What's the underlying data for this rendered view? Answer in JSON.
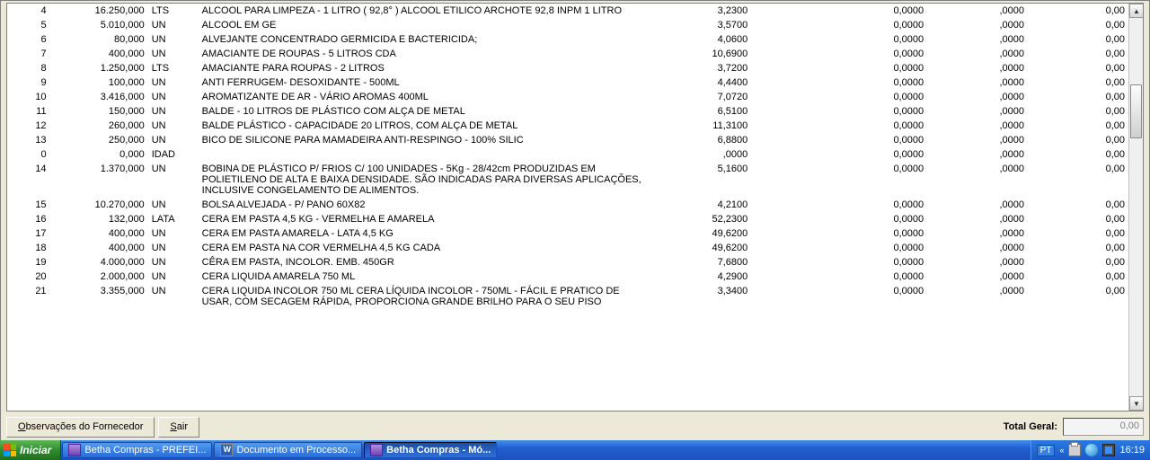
{
  "table": {
    "columns": {
      "num_width": 34,
      "qty_width": 78,
      "unit_width": 40,
      "desc_width": 360,
      "v1_width": 80,
      "v2_width": 140,
      "v3_width": 80,
      "v4_width": 80
    },
    "rows": [
      {
        "n": "4",
        "qty": "16.250,000",
        "unit": "LTS",
        "desc": "ALCOOL PARA LIMPEZA - 1 LITRO ( 92,8° )  ALCOOL ETILICO ARCHOTE 92,8 INPM 1 LITRO",
        "v1": "3,2300",
        "v2": "0,0000",
        "v3": ",0000",
        "v4": "0,00"
      },
      {
        "n": "5",
        "qty": "5.010,000",
        "unit": "UN",
        "desc": "ALCOOL EM GE",
        "v1": "3,5700",
        "v2": "0,0000",
        "v3": ",0000",
        "v4": "0,00"
      },
      {
        "n": "6",
        "qty": "80,000",
        "unit": "UN",
        "desc": "ALVEJANTE CONCENTRADO GERMICIDA E BACTERICIDA;",
        "v1": "4,0600",
        "v2": "0,0000",
        "v3": ",0000",
        "v4": "0,00"
      },
      {
        "n": "7",
        "qty": "400,000",
        "unit": "UN",
        "desc": "AMACIANTE DE ROUPAS - 5 LITROS CDA",
        "v1": "10,6900",
        "v2": "0,0000",
        "v3": ",0000",
        "v4": "0,00"
      },
      {
        "n": "8",
        "qty": "1.250,000",
        "unit": "LTS",
        "desc": "AMACIANTE PARA ROUPAS - 2 LITROS",
        "v1": "3,7200",
        "v2": "0,0000",
        "v3": ",0000",
        "v4": "0,00"
      },
      {
        "n": "9",
        "qty": "100,000",
        "unit": "UN",
        "desc": "ANTI FERRUGEM- DESOXIDANTE - 500ML",
        "v1": "4,4400",
        "v2": "0,0000",
        "v3": ",0000",
        "v4": "0,00"
      },
      {
        "n": "10",
        "qty": "3.416,000",
        "unit": "UN",
        "desc": "AROMATIZANTE DE AR - VÁRIO AROMAS 400ML",
        "v1": "7,0720",
        "v2": "0,0000",
        "v3": ",0000",
        "v4": "0,00"
      },
      {
        "n": "11",
        "qty": "150,000",
        "unit": "UN",
        "desc": "BALDE - 10 LITROS DE PLÁSTICO COM ALÇA DE METAL",
        "v1": "6,5100",
        "v2": "0,0000",
        "v3": ",0000",
        "v4": "0,00"
      },
      {
        "n": "12",
        "qty": "260,000",
        "unit": "UN",
        "desc": "BALDE PLÁSTICO - CAPACIDADE 20 LITROS, COM ALÇA DE METAL",
        "v1": "11,3100",
        "v2": "0,0000",
        "v3": ",0000",
        "v4": "0,00"
      },
      {
        "n": "13",
        "qty": "250,000",
        "unit": "UN",
        "desc": "BICO DE SILICONE PARA MAMADEIRA   ANTI-RESPINGO - 100% SILIC",
        "v1": "6,8800",
        "v2": "0,0000",
        "v3": ",0000",
        "v4": "0,00"
      },
      {
        "n": "0",
        "qty": "0,000",
        "unit": "IDAD",
        "desc": "",
        "v1": ",0000",
        "v2": "0,0000",
        "v3": ",0000",
        "v4": "0,00"
      },
      {
        "n": "14",
        "qty": "1.370,000",
        "unit": "UN",
        "desc": "BOBINA DE PLÁSTICO P/ FRIOS C/ 100 UNIDADES - 5Kg - 28/42cm  PRODUZIDAS EM POLIETILENO DE ALTA E BAIXA DENSIDADE.  SÃO INDICADAS PARA DIVERSAS APLICAÇÕES, INCLUSIVE CONGELAMENTO DE ALIMENTOS.",
        "v1": "5,1600",
        "v2": "0,0000",
        "v3": ",0000",
        "v4": "0,00"
      },
      {
        "n": "15",
        "qty": "10.270,000",
        "unit": "UN",
        "desc": "BOLSA ALVEJADA - P/ PANO 60X82",
        "v1": "4,2100",
        "v2": "0,0000",
        "v3": ",0000",
        "v4": "0,00"
      },
      {
        "n": "16",
        "qty": "132,000",
        "unit": "LATA",
        "desc": "CERA EM PASTA 4,5 KG - VERMELHA E AMARELA",
        "v1": "52,2300",
        "v2": "0,0000",
        "v3": ",0000",
        "v4": "0,00"
      },
      {
        "n": "17",
        "qty": "400,000",
        "unit": "UN",
        "desc": "CERA EM PASTA AMARELA - LATA 4,5 KG",
        "v1": "49,6200",
        "v2": "0,0000",
        "v3": ",0000",
        "v4": "0,00"
      },
      {
        "n": "18",
        "qty": "400,000",
        "unit": "UN",
        "desc": "CERA EM PASTA NA COR VERMELHA 4,5 KG CADA",
        "v1": "49,6200",
        "v2": "0,0000",
        "v3": ",0000",
        "v4": "0,00"
      },
      {
        "n": "19",
        "qty": "4.000,000",
        "unit": "UN",
        "desc": "CÊRA EM PASTA, INCOLOR. EMB. 450GR",
        "v1": "7,6800",
        "v2": "0,0000",
        "v3": ",0000",
        "v4": "0,00"
      },
      {
        "n": "20",
        "qty": "2.000,000",
        "unit": "UN",
        "desc": "CERA LIQUIDA AMARELA 750 ML",
        "v1": "4,2900",
        "v2": "0,0000",
        "v3": ",0000",
        "v4": "0,00"
      },
      {
        "n": "21",
        "qty": "3.355,000",
        "unit": "UN",
        "desc": "CERA LIQUIDA INCOLOR 750 ML  CERA LÍQUIDA INCOLOR - 750ML - FÁCIL E PRATICO DE USAR, COM SECAGEM RÁPIDA, PROPORCIONA GRANDE BRILHO PARA O SEU PISO",
        "v1": "3,3400",
        "v2": "0,0000",
        "v3": ",0000",
        "v4": "0,00"
      }
    ]
  },
  "buttons": {
    "obs_prefix": "O",
    "obs_rest": "bservações do Fornecedor",
    "sair_prefix": "S",
    "sair_rest": "air"
  },
  "total": {
    "label": "Total Geral:",
    "value": "0,00"
  },
  "taskbar": {
    "start": "Iniciar",
    "items": [
      {
        "label": "Betha Compras - PREFEI...",
        "active": false,
        "icon": "purple"
      },
      {
        "label": "Documento em Processo...",
        "active": false,
        "icon": "word"
      },
      {
        "label": "Betha Compras - Mó...",
        "active": true,
        "icon": "purple"
      }
    ],
    "lang": "PT",
    "clock": "16:19"
  },
  "colors": {
    "window_bg": "#ece9d8",
    "table_bg": "#ffffff",
    "border": "#808080",
    "text": "#000000",
    "total_value": "#808080",
    "taskbar_grad_top": "#3e90e8",
    "taskbar_grad_bot": "#1f52be",
    "start_grad_top": "#5eb85b",
    "start_grad_bot": "#1f6e1e"
  }
}
